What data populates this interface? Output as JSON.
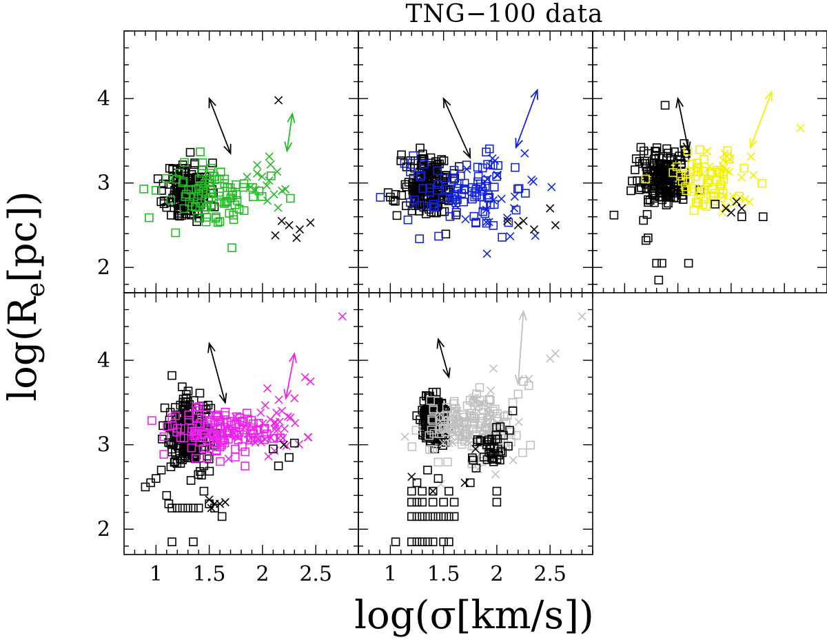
{
  "chart_data": {
    "type": "scatter",
    "title": "TNG−100 data",
    "xlabel": "log(σ[km/s])",
    "ylabel": "log(R",
    "ylabel_sub": "e",
    "ylabel_tail": "[pc])",
    "xlim": [
      0.7,
      2.9
    ],
    "ylim": [
      1.7,
      4.8
    ],
    "x_ticks": [
      "1",
      "1.5",
      "2",
      "2.5"
    ],
    "y_ticks": [
      "2",
      "3",
      "4"
    ],
    "panels": [
      {
        "name": "panel-1",
        "color": "#22bb22",
        "arrows": [
          {
            "color": "#000000",
            "from": [
              1.5,
              4.0
            ],
            "to": [
              1.7,
              3.35
            ]
          },
          {
            "color": "#22bb22",
            "from": [
              2.28,
              3.82
            ],
            "to": [
              2.23,
              3.38
            ]
          }
        ],
        "groups": [
          {
            "color": "#000000",
            "marker": "square",
            "cx": 1.3,
            "cy": 2.9,
            "sx": 0.1,
            "sy": 0.17,
            "n": 190,
            "seed": 11
          },
          {
            "color": "#22bb22",
            "marker": "square",
            "cx": 1.55,
            "cy": 2.85,
            "sx": 0.25,
            "sy": 0.2,
            "n": 90,
            "seed": 12
          },
          {
            "color": "#22bb22",
            "marker": "cross",
            "cx": 2.05,
            "cy": 3.0,
            "sx": 0.12,
            "sy": 0.15,
            "n": 16,
            "seed": 13
          },
          {
            "color": "#000000",
            "marker": "cross",
            "points": [
              [
                2.15,
                3.98
              ],
              [
                2.18,
                2.55
              ],
              [
                2.12,
                2.38
              ],
              [
                2.25,
                2.5
              ],
              [
                2.32,
                2.35
              ],
              [
                2.35,
                2.45
              ],
              [
                2.45,
                2.53
              ]
            ]
          }
        ]
      },
      {
        "name": "panel-2",
        "color": "#1122dd",
        "arrows": [
          {
            "color": "#000000",
            "from": [
              1.5,
              4.0
            ],
            "to": [
              1.75,
              3.3
            ]
          },
          {
            "color": "#1122dd",
            "from": [
              2.38,
              4.1
            ],
            "to": [
              2.18,
              3.42
            ]
          }
        ],
        "groups": [
          {
            "color": "#000000",
            "marker": "square",
            "cx": 1.35,
            "cy": 2.95,
            "sx": 0.12,
            "sy": 0.18,
            "n": 190,
            "seed": 21
          },
          {
            "color": "#1122dd",
            "marker": "square",
            "cx": 1.65,
            "cy": 2.9,
            "sx": 0.25,
            "sy": 0.2,
            "n": 90,
            "seed": 22
          },
          {
            "color": "#1122dd",
            "marker": "cross",
            "cx": 2.1,
            "cy": 2.8,
            "sx": 0.18,
            "sy": 0.25,
            "n": 26,
            "seed": 23
          },
          {
            "color": "#000000",
            "marker": "cross",
            "points": [
              [
                2.2,
                2.5
              ],
              [
                2.25,
                2.55
              ],
              [
                2.35,
                2.45
              ],
              [
                2.1,
                2.55
              ],
              [
                2.5,
                2.7
              ],
              [
                2.55,
                2.5
              ]
            ]
          }
        ]
      },
      {
        "name": "panel-3",
        "color": "#f2f200",
        "arrows": [
          {
            "color": "#000000",
            "from": [
              1.5,
              4.0
            ],
            "to": [
              1.6,
              3.38
            ]
          },
          {
            "color": "#f2f200",
            "from": [
              2.38,
              4.08
            ],
            "to": [
              2.18,
              3.42
            ]
          }
        ],
        "groups": [
          {
            "color": "#000000",
            "marker": "square",
            "cx": 1.35,
            "cy": 3.05,
            "sx": 0.13,
            "sy": 0.17,
            "n": 190,
            "seed": 31
          },
          {
            "color": "#f2f200",
            "marker": "square",
            "cx": 1.75,
            "cy": 3.05,
            "sx": 0.2,
            "sy": 0.17,
            "n": 60,
            "seed": 32
          },
          {
            "color": "#f2f200",
            "marker": "cross",
            "cx": 1.95,
            "cy": 3.0,
            "sx": 0.12,
            "sy": 0.2,
            "n": 24,
            "seed": 33
          },
          {
            "color": "#000000",
            "marker": "square",
            "points": [
              [
                0.9,
                2.62
              ],
              [
                1.2,
                2.32
              ],
              [
                1.22,
                2.35
              ],
              [
                1.3,
                2.05
              ],
              [
                1.32,
                1.85
              ],
              [
                1.35,
                2.05
              ],
              [
                1.6,
                2.05
              ],
              [
                1.85,
                2.75
              ],
              [
                2.1,
                2.6
              ],
              [
                2.3,
                2.6
              ],
              [
                1.38,
                3.92
              ]
            ]
          },
          {
            "color": "#000000",
            "marker": "cross",
            "points": [
              [
                1.95,
                2.7
              ],
              [
                2.0,
                2.65
              ],
              [
                2.05,
                2.78
              ],
              [
                2.1,
                2.7
              ]
            ]
          },
          {
            "color": "#f2f200",
            "marker": "cross",
            "points": [
              [
                2.65,
                3.65
              ]
            ]
          }
        ]
      },
      {
        "name": "panel-4",
        "color": "#ee22ee",
        "arrows": [
          {
            "color": "#000000",
            "from": [
              1.5,
              4.2
            ],
            "to": [
              1.65,
              3.5
            ]
          },
          {
            "color": "#ee22ee",
            "from": [
              2.3,
              4.08
            ],
            "to": [
              2.22,
              3.55
            ]
          }
        ],
        "groups": [
          {
            "color": "#000000",
            "marker": "square",
            "cx": 1.3,
            "cy": 3.15,
            "sx": 0.1,
            "sy": 0.2,
            "n": 230,
            "seed": 41
          },
          {
            "color": "#ee22ee",
            "marker": "square",
            "cx": 1.55,
            "cy": 3.15,
            "sx": 0.25,
            "sy": 0.15,
            "n": 120,
            "seed": 42
          },
          {
            "color": "#ee22ee",
            "marker": "cross",
            "cx": 2.0,
            "cy": 3.2,
            "sx": 0.2,
            "sy": 0.2,
            "n": 40,
            "seed": 43
          },
          {
            "color": "#ee22ee",
            "marker": "cross",
            "points": [
              [
                2.4,
                3.8
              ],
              [
                2.45,
                3.75
              ],
              [
                2.3,
                3.55
              ],
              [
                2.75,
                4.52
              ]
            ]
          },
          {
            "color": "#000000",
            "marker": "square",
            "points": [
              [
                0.9,
                2.5
              ],
              [
                0.95,
                2.55
              ],
              [
                1.0,
                2.6
              ],
              [
                1.05,
                2.7
              ],
              [
                1.1,
                2.4
              ],
              [
                1.12,
                2.3
              ],
              [
                1.15,
                2.25
              ],
              [
                1.2,
                2.25
              ],
              [
                1.25,
                2.25
              ],
              [
                1.3,
                2.25
              ],
              [
                1.35,
                2.25
              ],
              [
                1.4,
                2.25
              ],
              [
                1.45,
                2.45
              ],
              [
                1.5,
                2.3
              ],
              [
                1.55,
                2.25
              ],
              [
                1.62,
                2.15
              ],
              [
                1.15,
                1.85
              ],
              [
                1.35,
                1.85
              ],
              [
                1.15,
                3.82
              ],
              [
                2.15,
                2.75
              ],
              [
                2.1,
                2.95
              ],
              [
                2.3,
                3.02
              ],
              [
                2.25,
                2.85
              ]
            ]
          },
          {
            "color": "#000000",
            "marker": "cross",
            "points": [
              [
                1.5,
                2.35
              ],
              [
                1.55,
                2.3
              ],
              [
                1.6,
                2.3
              ],
              [
                1.65,
                2.32
              ],
              [
                1.52,
                2.25
              ],
              [
                2.2,
                3.0
              ]
            ]
          }
        ]
      },
      {
        "name": "panel-5",
        "color": "#c0c0c0",
        "arrows": [
          {
            "color": "#000000",
            "from": [
              1.45,
              4.25
            ],
            "to": [
              1.55,
              3.8
            ]
          },
          {
            "color": "#c0c0c0",
            "from": [
              2.25,
              4.58
            ],
            "to": [
              2.2,
              3.72
            ]
          }
        ],
        "groups": [
          {
            "color": "#000000",
            "marker": "square",
            "cx": 1.4,
            "cy": 3.3,
            "sx": 0.06,
            "sy": 0.15,
            "n": 170,
            "seed": 51
          },
          {
            "color": "#c0c0c0",
            "marker": "square",
            "cx": 1.75,
            "cy": 3.2,
            "sx": 0.2,
            "sy": 0.2,
            "n": 130,
            "seed": 52
          },
          {
            "color": "#c0c0c0",
            "marker": "cross",
            "cx": 1.8,
            "cy": 3.25,
            "sx": 0.25,
            "sy": 0.3,
            "n": 40,
            "seed": 53
          },
          {
            "color": "#000000",
            "marker": "square",
            "cx": 1.95,
            "cy": 3.0,
            "sx": 0.08,
            "sy": 0.15,
            "n": 35,
            "seed": 54
          },
          {
            "color": "#c0c0c0",
            "marker": "square",
            "points": [
              [
                2.2,
                3.6
              ],
              [
                2.25,
                3.75
              ],
              [
                2.3,
                3.7
              ],
              [
                2.15,
                3.5
              ],
              [
                2.1,
                3.35
              ]
            ]
          },
          {
            "color": "#c0c0c0",
            "marker": "cross",
            "points": [
              [
                2.5,
                4.02
              ],
              [
                2.55,
                4.08
              ],
              [
                2.8,
                4.52
              ],
              [
                2.3,
                3.78
              ]
            ]
          },
          {
            "color": "#000000",
            "marker": "square",
            "points": [
              [
                1.05,
                1.85
              ],
              [
                1.2,
                1.85
              ],
              [
                1.25,
                1.85
              ],
              [
                1.3,
                1.85
              ],
              [
                1.35,
                1.85
              ],
              [
                1.4,
                1.85
              ],
              [
                1.5,
                1.85
              ],
              [
                1.55,
                1.85
              ],
              [
                1.2,
                2.15
              ],
              [
                1.25,
                2.15
              ],
              [
                1.3,
                2.15
              ],
              [
                1.35,
                2.15
              ],
              [
                1.4,
                2.15
              ],
              [
                1.45,
                2.15
              ],
              [
                1.5,
                2.15
              ],
              [
                1.55,
                2.15
              ],
              [
                1.6,
                2.15
              ],
              [
                1.2,
                2.32
              ],
              [
                1.25,
                2.32
              ],
              [
                1.3,
                2.32
              ],
              [
                1.4,
                2.32
              ],
              [
                1.5,
                2.32
              ],
              [
                1.6,
                2.32
              ],
              [
                1.2,
                2.45
              ],
              [
                1.3,
                2.45
              ],
              [
                1.4,
                2.45
              ],
              [
                1.55,
                2.45
              ],
              [
                1.25,
                2.55
              ],
              [
                1.45,
                2.6
              ],
              [
                1.35,
                2.7
              ],
              [
                2.0,
                2.32
              ],
              [
                2.0,
                2.45
              ],
              [
                1.75,
                2.55
              ],
              [
                2.15,
                3.4
              ]
            ]
          },
          {
            "color": "#000000",
            "marker": "cross",
            "points": [
              [
                1.2,
                2.62
              ],
              [
                1.4,
                2.45
              ],
              [
                1.7,
                2.55
              ],
              [
                1.8,
                2.95
              ]
            ]
          }
        ]
      }
    ]
  }
}
